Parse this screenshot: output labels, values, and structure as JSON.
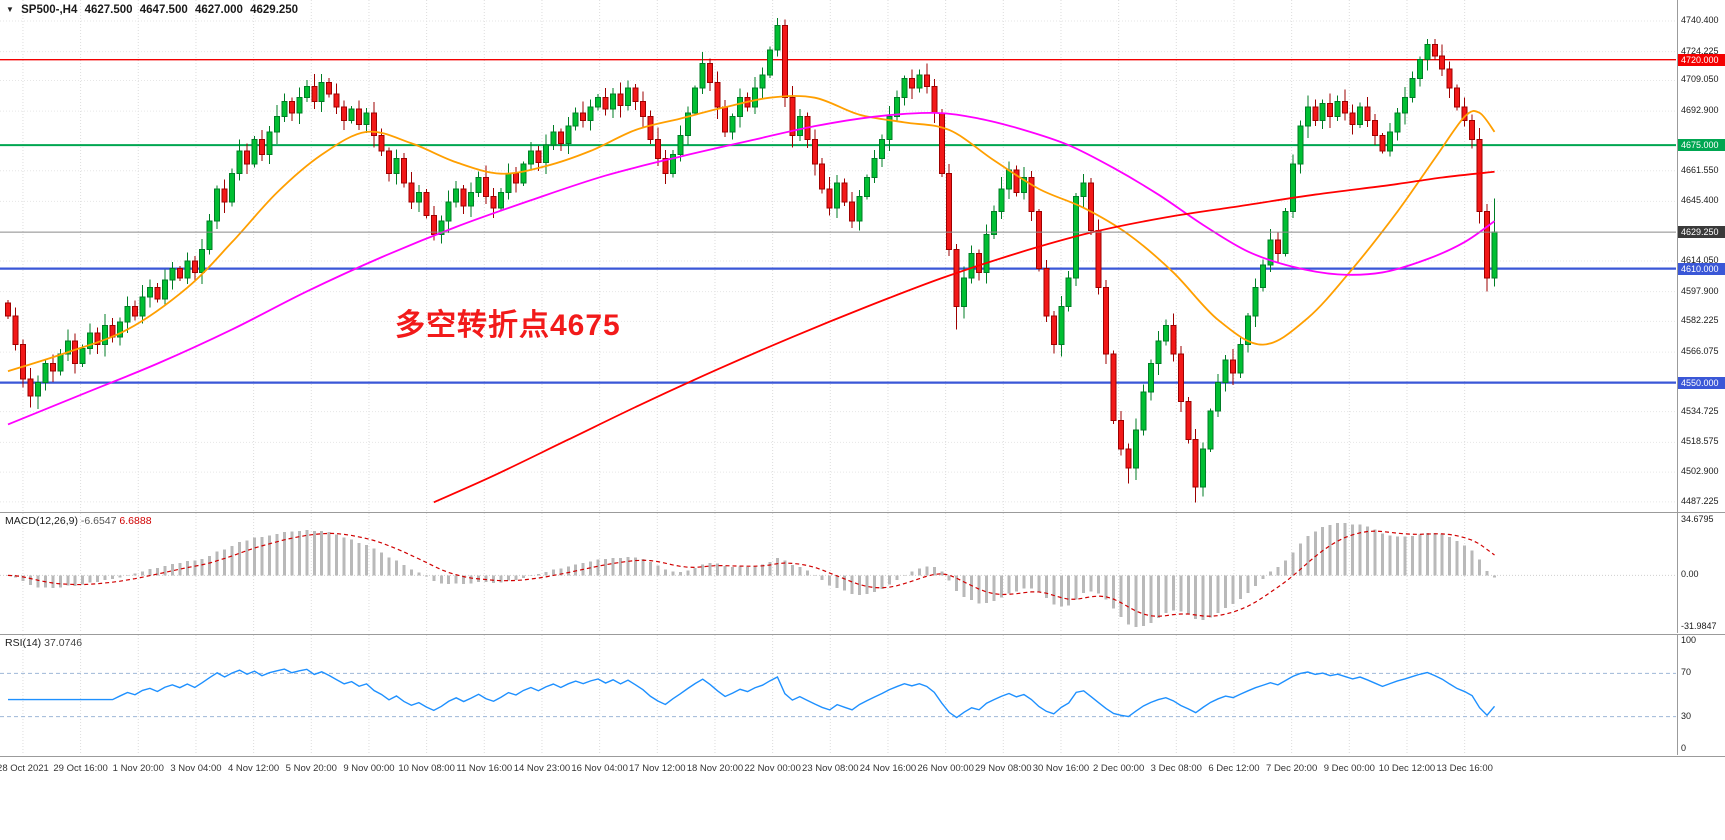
{
  "window": {
    "symbol_period": "SP500-,H4",
    "ohlc": {
      "open": "4627.500",
      "high": "4647.500",
      "low": "4627.000",
      "close": "4629.250"
    }
  },
  "annotation": {
    "text": "多空转折点4675",
    "color": "#f21a1a"
  },
  "colors": {
    "up": "#00bf33",
    "up_edge": "#007d26",
    "down": "#f21818",
    "down_edge": "#9e0000",
    "ma_fast": "#ff9f00",
    "ma_mid": "#ff00ff",
    "ma_slow": "#ff0000",
    "macd_hist": "#b9b9b9",
    "macd_signal": "#d00000",
    "rsi": "#1e90ff",
    "grid": "#dcdcdc",
    "current_line": "#8a8a8a",
    "current_tag": "#3a3a3a"
  },
  "chart_data": {
    "type": "candlestick",
    "symbol": "SP500-",
    "timeframe": "H4",
    "title": "SP500-,H4 4627.500 4647.500 4627.000 4629.250",
    "price_axis": {
      "min": 4484,
      "max": 4743,
      "ticks": [
        "4740.400",
        "4724.225",
        "4709.050",
        "4692.900",
        "4661.550",
        "4645.400",
        "4614.050",
        "4597.900",
        "4582.225",
        "4566.075",
        "4534.725",
        "4518.575",
        "4502.900",
        "4487.225"
      ]
    },
    "hlines": [
      {
        "value": 4720,
        "label": "4720.000",
        "color": "#f40000",
        "width": 1.4
      },
      {
        "value": 4675,
        "label": "4675.000",
        "color": "#00a651",
        "width": 2
      },
      {
        "value": 4610,
        "label": "4610.000",
        "color": "#3a57d7",
        "width": 2.2
      },
      {
        "value": 4550,
        "label": "4550.000",
        "color": "#3a57d7",
        "width": 2.2
      }
    ],
    "current_price": {
      "value": 4629.25,
      "label": "4629.250"
    },
    "x_labels": [
      "28 Oct 2021",
      "29 Oct 16:00",
      "1 Nov 20:00",
      "3 Nov 04:00",
      "4 Nov 12:00",
      "5 Nov 20:00",
      "9 Nov 00:00",
      "10 Nov 08:00",
      "11 Nov 16:00",
      "14 Nov 23:00",
      "16 Nov 04:00",
      "17 Nov 12:00",
      "18 Nov 20:00",
      "22 Nov 00:00",
      "23 Nov 08:00",
      "24 Nov 16:00",
      "26 Nov 00:00",
      "29 Nov 08:00",
      "30 Nov 16:00",
      "2 Dec 00:00",
      "3 Dec 08:00",
      "6 Dec 12:00",
      "7 Dec 20:00",
      "9 Dec 00:00",
      "10 Dec 12:00",
      "13 Dec 16:00"
    ],
    "first_open": 4592,
    "closes": [
      4585,
      4570,
      4552,
      4543,
      4550,
      4560,
      4556,
      4565,
      4572,
      4560,
      4568,
      4576,
      4570,
      4580,
      4574,
      4582,
      4590,
      4585,
      4595,
      4600,
      4594,
      4604,
      4610,
      4605,
      4614,
      4608,
      4620,
      4635,
      4652,
      4645,
      4660,
      4672,
      4665,
      4678,
      4670,
      4682,
      4690,
      4698,
      4692,
      4700,
      4706,
      4698,
      4708,
      4702,
      4695,
      4688,
      4694,
      4686,
      4692,
      4680,
      4672,
      4660,
      4668,
      4655,
      4645,
      4650,
      4638,
      4628,
      4635,
      4645,
      4652,
      4643,
      4650,
      4658,
      4648,
      4642,
      4650,
      4660,
      4655,
      4665,
      4672,
      4666,
      4675,
      4682,
      4676,
      4685,
      4692,
      4688,
      4695,
      4700,
      4694,
      4702,
      4696,
      4705,
      4698,
      4690,
      4678,
      4668,
      4660,
      4670,
      4680,
      4692,
      4705,
      4718,
      4708,
      4695,
      4682,
      4690,
      4700,
      4695,
      4705,
      4712,
      4725,
      4738,
      4700,
      4680,
      4690,
      4678,
      4665,
      4652,
      4642,
      4655,
      4645,
      4635,
      4648,
      4658,
      4668,
      4678,
      4690,
      4700,
      4710,
      4705,
      4712,
      4706,
      4692,
      4660,
      4620,
      4590,
      4605,
      4618,
      4608,
      4628,
      4640,
      4652,
      4662,
      4650,
      4658,
      4640,
      4610,
      4585,
      4570,
      4590,
      4605,
      4648,
      4655,
      4630,
      4600,
      4565,
      4530,
      4515,
      4505,
      4525,
      4545,
      4560,
      4572,
      4580,
      4565,
      4540,
      4520,
      4495,
      4515,
      4535,
      4550,
      4562,
      4555,
      4570,
      4585,
      4600,
      4612,
      4625,
      4618,
      4640,
      4665,
      4685,
      4695,
      4688,
      4697,
      4690,
      4698,
      4692,
      4686,
      4695,
      4688,
      4680,
      4672,
      4682,
      4692,
      4700,
      4710,
      4720,
      4728,
      4722,
      4715,
      4705,
      4695,
      4688,
      4678,
      4640,
      4605,
      4629.25
    ],
    "wick_overrides": {
      "4": {
        "low": 4536
      },
      "93": {
        "high": 4724
      },
      "103": {
        "high": 4742
      },
      "127": {
        "low": 4578
      },
      "150": {
        "low": 4497
      },
      "159": {
        "low": 4487
      },
      "190": {
        "high": 4731
      },
      "198": {
        "low": 4598
      },
      "199": {
        "high": 4647
      }
    },
    "moving_averages": [
      {
        "name": "ma-fast-orange",
        "color": "#ff9f00",
        "points": [
          [
            0,
            4556
          ],
          [
            8,
            4566
          ],
          [
            16,
            4578
          ],
          [
            24,
            4600
          ],
          [
            30,
            4624
          ],
          [
            36,
            4650
          ],
          [
            42,
            4670
          ],
          [
            48,
            4682
          ],
          [
            54,
            4676
          ],
          [
            60,
            4666
          ],
          [
            66,
            4660
          ],
          [
            72,
            4664
          ],
          [
            78,
            4672
          ],
          [
            84,
            4683
          ],
          [
            90,
            4689
          ],
          [
            96,
            4695
          ],
          [
            102,
            4700
          ],
          [
            108,
            4700
          ],
          [
            114,
            4691
          ],
          [
            120,
            4687
          ],
          [
            126,
            4683
          ],
          [
            132,
            4667
          ],
          [
            138,
            4652
          ],
          [
            144,
            4642
          ],
          [
            150,
            4628
          ],
          [
            156,
            4608
          ],
          [
            162,
            4583
          ],
          [
            168,
            4570
          ],
          [
            174,
            4584
          ],
          [
            180,
            4610
          ],
          [
            186,
            4640
          ],
          [
            191,
            4668
          ],
          [
            195,
            4690
          ],
          [
            197,
            4692
          ],
          [
            199,
            4682
          ]
        ]
      },
      {
        "name": "ma-mid-magenta",
        "color": "#ff00ff",
        "points": [
          [
            0,
            4528
          ],
          [
            10,
            4544
          ],
          [
            20,
            4560
          ],
          [
            30,
            4578
          ],
          [
            40,
            4598
          ],
          [
            50,
            4616
          ],
          [
            60,
            4632
          ],
          [
            70,
            4646
          ],
          [
            80,
            4659
          ],
          [
            90,
            4669
          ],
          [
            100,
            4678
          ],
          [
            108,
            4685
          ],
          [
            116,
            4690
          ],
          [
            124,
            4692
          ],
          [
            130,
            4689
          ],
          [
            136,
            4683
          ],
          [
            142,
            4675
          ],
          [
            148,
            4663
          ],
          [
            154,
            4649
          ],
          [
            160,
            4633
          ],
          [
            166,
            4619
          ],
          [
            172,
            4611
          ],
          [
            178,
            4607
          ],
          [
            184,
            4608
          ],
          [
            190,
            4615
          ],
          [
            195,
            4624
          ],
          [
            199,
            4635
          ]
        ]
      },
      {
        "name": "ma-slow-red",
        "color": "#ff0000",
        "points": [
          [
            57,
            4487
          ],
          [
            65,
            4501
          ],
          [
            75,
            4520
          ],
          [
            85,
            4539
          ],
          [
            95,
            4557
          ],
          [
            105,
            4574
          ],
          [
            115,
            4590
          ],
          [
            125,
            4605
          ],
          [
            135,
            4618
          ],
          [
            145,
            4629
          ],
          [
            155,
            4637
          ],
          [
            165,
            4643
          ],
          [
            175,
            4649
          ],
          [
            185,
            4654
          ],
          [
            192,
            4658
          ],
          [
            199,
            4661
          ]
        ]
      }
    ],
    "indicators": [
      {
        "name": "MACD",
        "label": "MACD(12,26,9)",
        "value_main": "-6.6547",
        "value_signal": "6.6888",
        "range": [
          -33.5,
          36.5
        ],
        "ticks": [
          {
            "label": "34.6795",
            "value": 34.6795
          },
          {
            "label": "0.00",
            "value": 0
          },
          {
            "label": "-31.9847",
            "value": -31.9847
          }
        ]
      },
      {
        "name": "RSI",
        "label": "RSI(14)",
        "value": "37.0746",
        "range": [
          0,
          100
        ],
        "levels": [
          70,
          30
        ],
        "ticks": [
          {
            "label": "100",
            "value": 100
          },
          {
            "label": "70",
            "value": 70
          },
          {
            "label": "30",
            "value": 30
          },
          {
            "label": "0",
            "value": 0
          }
        ]
      }
    ]
  }
}
